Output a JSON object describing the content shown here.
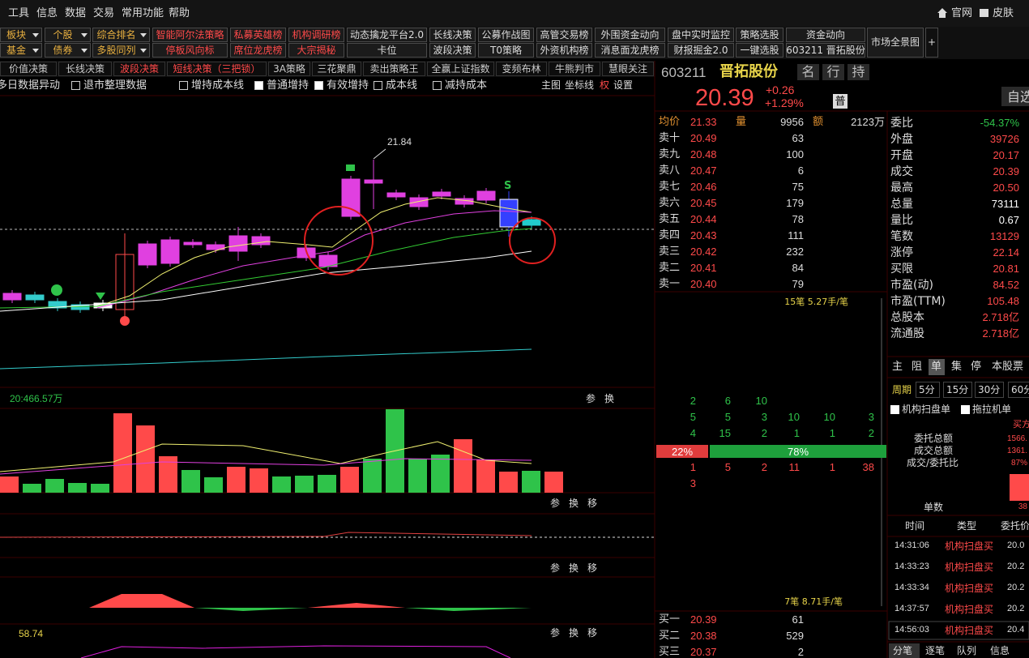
{
  "menu": [
    "工具",
    "信息",
    "数据",
    "交易",
    "常用功能",
    "帮助"
  ],
  "top_links": [
    "官网",
    "皮肤"
  ],
  "toolbar": {
    "row1": [
      "板块",
      "个股",
      "综合排名",
      "智能阿尔法策略",
      "私募英雄榜",
      "机构调研榜",
      "动态擒龙平台2.0",
      "长线决策",
      "公募作战图",
      "高管交易榜",
      "外围资金动向",
      "盘中实时监控",
      "策略选股",
      "资金动向"
    ],
    "row2": [
      "基金",
      "债券",
      "多股同列",
      "停板风向标",
      "席位龙虎榜",
      "大宗揭秘",
      "卡位",
      "波段决策",
      "T0策略",
      "外资机构榜",
      "消息面龙虎榜",
      "财报掘金2.0",
      "一键选股",
      "603211 晋拓股份"
    ],
    "panorama": "市场全景图",
    "add": "+"
  },
  "strategy_tabs": [
    "价值决策",
    "长线决策",
    "波段决策",
    "短线决策（三把锁）",
    "3A策略",
    "三花聚鼎",
    "卖出策略王",
    "全赢上证指数",
    "变频布林",
    "牛熊判市",
    "慧眼关注"
  ],
  "options": {
    "checks": [
      "多日数据异动",
      "退市整理数据",
      "增持成本线",
      "普通增持",
      "有效增持",
      "成本线",
      "减持成本"
    ],
    "controls": [
      "主图",
      "坐标线",
      "权",
      "设置"
    ]
  },
  "main_chart": {
    "high_label": "21.84",
    "signal": "S"
  },
  "volume_panel": {
    "label": "20:466.57万"
  },
  "panel_buttons": [
    "参",
    "换",
    "移"
  ],
  "indicator_value": "58.74",
  "quote": {
    "code": "603211",
    "name": "晋拓股份",
    "tags": [
      "名",
      "行",
      "持"
    ],
    "price": "20.39",
    "change": "+0.26",
    "change_pct": "+1.29%",
    "badge": "普",
    "watch": "自选",
    "summary": [
      [
        "均价",
        "21.33"
      ],
      [
        "量",
        "9956"
      ],
      [
        "额",
        "2123万"
      ]
    ],
    "asks": [
      [
        "卖十",
        "20.49",
        "63"
      ],
      [
        "卖九",
        "20.48",
        "100"
      ],
      [
        "卖八",
        "20.47",
        "6"
      ],
      [
        "卖七",
        "20.46",
        "75"
      ],
      [
        "卖六",
        "20.45",
        "179"
      ],
      [
        "卖五",
        "20.44",
        "78"
      ],
      [
        "卖四",
        "20.43",
        "111"
      ],
      [
        "卖三",
        "20.42",
        "232"
      ],
      [
        "卖二",
        "20.41",
        "84"
      ],
      [
        "卖一",
        "20.40",
        "79"
      ]
    ],
    "ask_note": "15笔 5.27手/笔",
    "ask_queue": [
      [
        "2",
        "6",
        "10"
      ],
      [
        "5",
        "5",
        "3",
        "10",
        "10",
        "3"
      ],
      [
        "4",
        "15",
        "2",
        "1",
        "1",
        "2"
      ]
    ],
    "ratio": [
      "22%",
      "78%"
    ],
    "bid_queue": [
      [
        "1",
        "5",
        "2",
        "11",
        "1",
        "38"
      ],
      [
        "3"
      ]
    ],
    "bid_note": "7笔 8.71手/笔",
    "bids": [
      [
        "买一",
        "20.39",
        "61"
      ],
      [
        "买二",
        "20.38",
        "529"
      ],
      [
        "买三",
        "20.37",
        "2"
      ]
    ],
    "stats": [
      [
        "委比",
        "-54.37%"
      ],
      [
        "外盘",
        "39726"
      ],
      [
        "开盘",
        "20.17"
      ],
      [
        "成交",
        "20.39"
      ],
      [
        "最高",
        "20.50"
      ],
      [
        "总量",
        "73111"
      ],
      [
        "量比",
        "0.67"
      ],
      [
        "笔数",
        "13129"
      ],
      [
        "涨停",
        "22.14"
      ],
      [
        "买限",
        "20.81"
      ],
      [
        "市盈(动)",
        "84.52"
      ],
      [
        "市盈(TTM)",
        "105.48"
      ],
      [
        "总股本",
        "2.718亿"
      ],
      [
        "流通股",
        "2.718亿"
      ]
    ]
  },
  "order_panel": {
    "tabs": [
      "主",
      "阻",
      "单",
      "集",
      "停",
      "本股票"
    ],
    "period_label": "周期",
    "periods": [
      "5分",
      "15分",
      "30分",
      "60分"
    ],
    "filters": [
      "机构扫盘单",
      "拖拉机单"
    ],
    "side": "买方",
    "metrics": [
      [
        "委托总额",
        "1566."
      ],
      [
        "成交总额",
        "1361."
      ],
      [
        "成交/委托比",
        "87%"
      ]
    ],
    "count_label": "单数",
    "count": "38",
    "columns": [
      "时间",
      "类型",
      "委托价"
    ],
    "rows": [
      [
        "14:31:06",
        "机构扫盘买",
        "20.0"
      ],
      [
        "14:33:23",
        "机构扫盘买",
        "20.2"
      ],
      [
        "14:33:34",
        "机构扫盘买",
        "20.2"
      ],
      [
        "14:37:57",
        "机构扫盘买",
        "20.2"
      ],
      [
        "14:56:03",
        "机构扫盘买",
        "20.4"
      ]
    ]
  },
  "bottom_tabs": [
    "分笔",
    "逐笔",
    "队列",
    "信息"
  ]
}
